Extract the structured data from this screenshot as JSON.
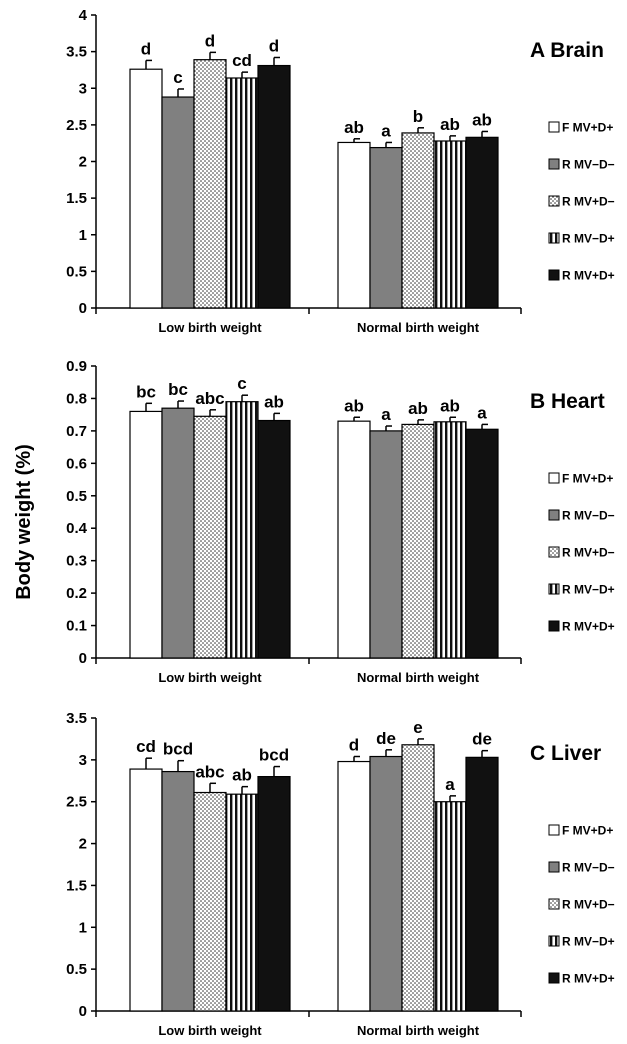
{
  "ylabel": "Body weight (%)",
  "series_names": [
    "F MV+D+",
    "R MV−D−",
    "R MV+D−",
    "R  MV−D+",
    "R MV+D+"
  ],
  "series_styles": [
    {
      "fill": "#ffffff",
      "pattern": "none"
    },
    {
      "fill": "#808080",
      "pattern": "none"
    },
    {
      "fill": "#ffffff",
      "pattern": "dots"
    },
    {
      "fill": "#ffffff",
      "pattern": "vlines"
    },
    {
      "fill": "#111111",
      "pattern": "none"
    }
  ],
  "chart_data": [
    {
      "type": "bar",
      "title": "A Brain",
      "categories": [
        "Low birth weight",
        "Normal birth weight"
      ],
      "ylim": [
        0,
        4
      ],
      "yticks": [
        "0",
        "0.5",
        "1",
        "1.5",
        "2",
        "2.5",
        "3",
        "3.5",
        "4"
      ],
      "series": [
        {
          "name": "F MV+D+",
          "values": [
            3.26,
            2.26
          ],
          "errors": [
            0.12,
            0.05
          ],
          "labels": [
            "d",
            "ab"
          ]
        },
        {
          "name": "R MV−D−",
          "values": [
            2.88,
            2.19
          ],
          "errors": [
            0.11,
            0.07
          ],
          "labels": [
            "c",
            "a"
          ]
        },
        {
          "name": "R MV+D−",
          "values": [
            3.39,
            2.39
          ],
          "errors": [
            0.1,
            0.07
          ],
          "labels": [
            "d",
            "b"
          ]
        },
        {
          "name": "R  MV−D+",
          "values": [
            3.14,
            2.28
          ],
          "errors": [
            0.08,
            0.07
          ],
          "labels": [
            "cd",
            "ab"
          ]
        },
        {
          "name": "R MV+D+",
          "values": [
            3.31,
            2.33
          ],
          "errors": [
            0.11,
            0.08
          ],
          "labels": [
            "d",
            "ab"
          ]
        }
      ],
      "legend": "right"
    },
    {
      "type": "bar",
      "title": "B Heart",
      "categories": [
        "Low birth weight",
        "Normal birth weight"
      ],
      "ylim": [
        0,
        0.9
      ],
      "yticks": [
        "0",
        "0.1",
        "0.2",
        "0.3",
        "0.4",
        "0.5",
        "0.6",
        "0.7",
        "0.8",
        "0.9"
      ],
      "series": [
        {
          "name": "F MV+D+",
          "values": [
            0.76,
            0.73
          ],
          "errors": [
            0.025,
            0.012
          ],
          "labels": [
            "bc",
            "ab"
          ]
        },
        {
          "name": "R MV−D−",
          "values": [
            0.77,
            0.7
          ],
          "errors": [
            0.022,
            0.015
          ],
          "labels": [
            "bc",
            "a"
          ]
        },
        {
          "name": "R MV+D−",
          "values": [
            0.745,
            0.72
          ],
          "errors": [
            0.02,
            0.014
          ],
          "labels": [
            "abc",
            "ab"
          ]
        },
        {
          "name": "R  MV−D+",
          "values": [
            0.79,
            0.728
          ],
          "errors": [
            0.02,
            0.014
          ],
          "labels": [
            "c",
            "ab"
          ]
        },
        {
          "name": "R MV+D+",
          "values": [
            0.732,
            0.705
          ],
          "errors": [
            0.022,
            0.015
          ],
          "labels": [
            "ab",
            "a"
          ]
        }
      ],
      "legend": "right"
    },
    {
      "type": "bar",
      "title": "C Liver",
      "categories": [
        "Low birth weight",
        "Normal birth weight"
      ],
      "ylim": [
        0,
        3.5
      ],
      "yticks": [
        "0",
        "0.5",
        "1",
        "1.5",
        "2",
        "2.5",
        "3",
        "3.5"
      ],
      "series": [
        {
          "name": "F MV+D+",
          "values": [
            2.89,
            2.98
          ],
          "errors": [
            0.13,
            0.06
          ],
          "labels": [
            "cd",
            "d"
          ]
        },
        {
          "name": "R MV−D−",
          "values": [
            2.86,
            3.04
          ],
          "errors": [
            0.13,
            0.08
          ],
          "labels": [
            "bcd",
            "de"
          ]
        },
        {
          "name": "R MV+D−",
          "values": [
            2.61,
            3.18
          ],
          "errors": [
            0.11,
            0.07
          ],
          "labels": [
            "abc",
            "e"
          ]
        },
        {
          "name": "R  MV−D+",
          "values": [
            2.59,
            2.5
          ],
          "errors": [
            0.09,
            0.07
          ],
          "labels": [
            "ab",
            "a"
          ]
        },
        {
          "name": "R MV+D+",
          "values": [
            2.8,
            3.03
          ],
          "errors": [
            0.12,
            0.08
          ],
          "labels": [
            "bcd",
            "de"
          ]
        }
      ],
      "legend": "right"
    }
  ]
}
